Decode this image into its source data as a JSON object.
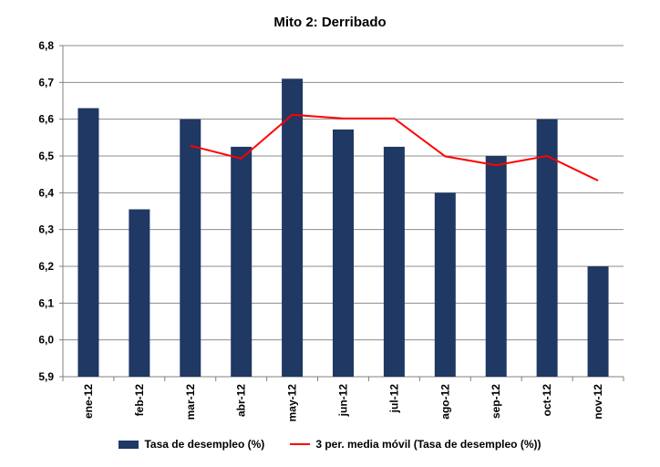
{
  "chart_data": {
    "type": "bar",
    "title": "Mito 2: Derribado",
    "categories": [
      "ene-12",
      "feb-12",
      "mar-12",
      "abr-12",
      "may-12",
      "jun-12",
      "jul-12",
      "ago-12",
      "sep-12",
      "oct-12",
      "nov-12"
    ],
    "series": [
      {
        "name": "Tasa de desempleo (%)",
        "type": "bar",
        "color": "#1f3864",
        "values": [
          6.63,
          6.355,
          6.6,
          6.525,
          6.71,
          6.572,
          6.525,
          6.4,
          6.5,
          6.6,
          6.2
        ]
      },
      {
        "name": "3 per. media móvil (Tasa de desempleo (%))",
        "type": "line",
        "color": "#ff0000",
        "values": [
          null,
          null,
          6.528,
          6.493,
          6.612,
          6.602,
          6.602,
          6.499,
          6.475,
          6.5,
          6.433
        ]
      }
    ],
    "ylim": [
      5.9,
      6.8
    ],
    "yticks": [
      "5,9",
      "6,0",
      "6,1",
      "6,2",
      "6,3",
      "6,4",
      "6,5",
      "6,6",
      "6,7",
      "6,8"
    ],
    "grid": true,
    "legend": "bottom"
  }
}
